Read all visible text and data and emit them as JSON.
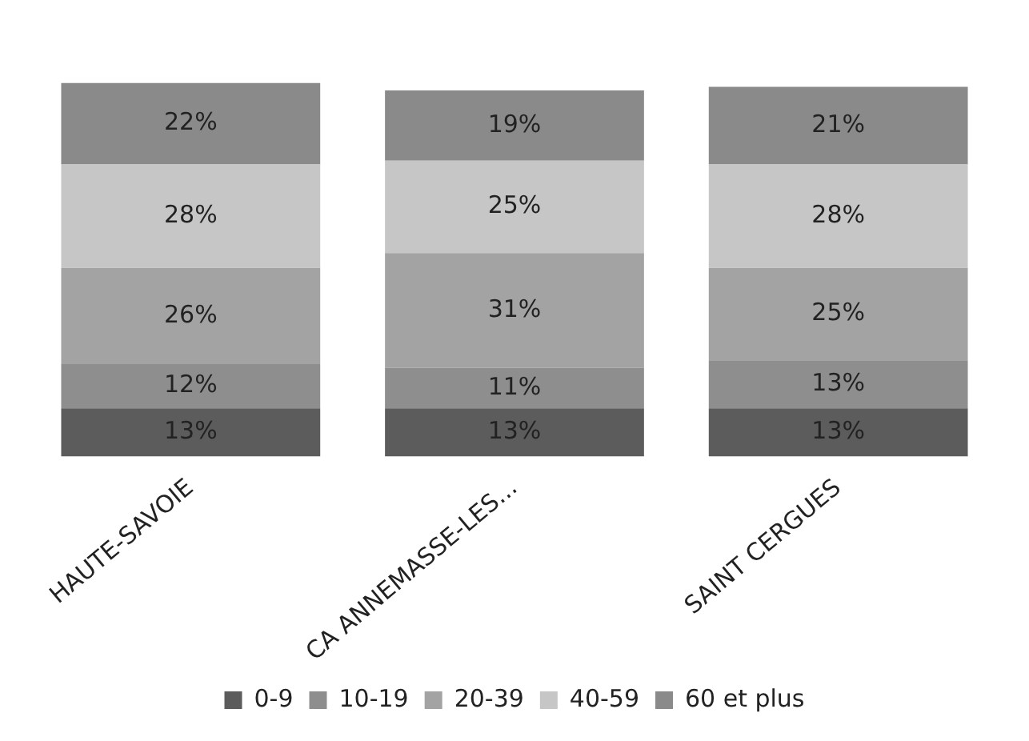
{
  "chart_data": {
    "type": "bar",
    "stacked": true,
    "categories": [
      "HAUTE-SAVOIE",
      "CA ANNEMASSE-LES...",
      "SAINT CERGUES"
    ],
    "series": [
      {
        "name": "0-9",
        "color": "#5c5c5c",
        "values": [
          13,
          13,
          13
        ],
        "value_labels": [
          "13%",
          "13%",
          "13%"
        ]
      },
      {
        "name": "10-19",
        "color": "#8e8e8e",
        "values": [
          12,
          11,
          13
        ],
        "value_labels": [
          "12%",
          "11%",
          "13%"
        ]
      },
      {
        "name": "20-39",
        "color": "#a3a3a3",
        "values": [
          26,
          31,
          25
        ],
        "value_labels": [
          "26%",
          "31%",
          "25%"
        ]
      },
      {
        "name": "40-59",
        "color": "#c6c6c6",
        "values": [
          28,
          25,
          28
        ],
        "value_labels": [
          "28%",
          "25%",
          "28%"
        ]
      },
      {
        "name": "60 et plus",
        "color": "#8a8a8a",
        "values": [
          22,
          19,
          21
        ],
        "value_labels": [
          "22%",
          "19%",
          "21%"
        ]
      }
    ],
    "tick_labels": "x",
    "legend": "bottom"
  }
}
